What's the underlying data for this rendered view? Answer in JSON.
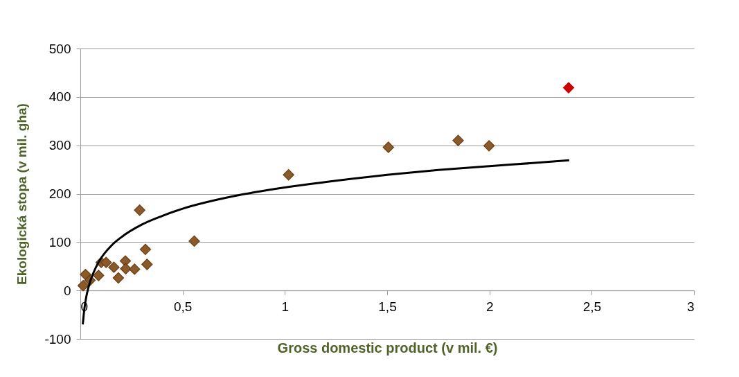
{
  "chart_data": {
    "type": "scatter",
    "xlabel": "Gross domestic product (v mil. €)",
    "ylabel": "Ekologická stopa (v mil. gha)",
    "xlim": [
      0,
      3
    ],
    "xticks": [
      0,
      {
        "value": 0.5,
        "label": "0,5"
      },
      1,
      {
        "value": 1.5,
        "label": "1,5"
      },
      2,
      {
        "value": 2.5,
        "label": "2,5"
      },
      3
    ],
    "ylim": [
      -100,
      500
    ],
    "yticks": [
      -100,
      0,
      100,
      200,
      300,
      400,
      500
    ],
    "grid": "y",
    "marker": "diamond",
    "series": [
      {
        "color": "#8b5a2b",
        "x": [
          0.014,
          0.025,
          0.047,
          0.089,
          0.102,
          0.126,
          0.164,
          0.186,
          0.22,
          0.222,
          0.265,
          0.29,
          0.318,
          0.326,
          0.557,
          1.018,
          1.506,
          1.847,
          1.998
        ],
        "values": [
          10,
          33,
          21,
          31,
          58,
          58,
          48,
          26,
          61,
          45,
          44,
          166,
          85,
          54,
          102,
          239,
          296,
          310,
          299
        ]
      },
      {
        "color": "#cc0000",
        "x": [
          2.387
        ],
        "values": [
          419
        ]
      },
      {
        "type": "line",
        "color": "#000000",
        "marker": "none",
        "x": [
          0.012,
          0.02,
          0.03,
          0.05,
          0.075,
          0.1,
          0.15,
          0.2,
          0.3,
          0.4,
          0.5,
          0.75,
          1,
          1.25,
          1.5,
          1.75,
          2,
          2.2,
          2.39
        ],
        "values": [
          -70,
          -37,
          -11,
          21,
          47,
          66,
          92,
          110,
          136,
          154,
          169,
          195,
          213,
          227,
          239,
          249,
          257,
          263,
          269
        ]
      }
    ]
  }
}
